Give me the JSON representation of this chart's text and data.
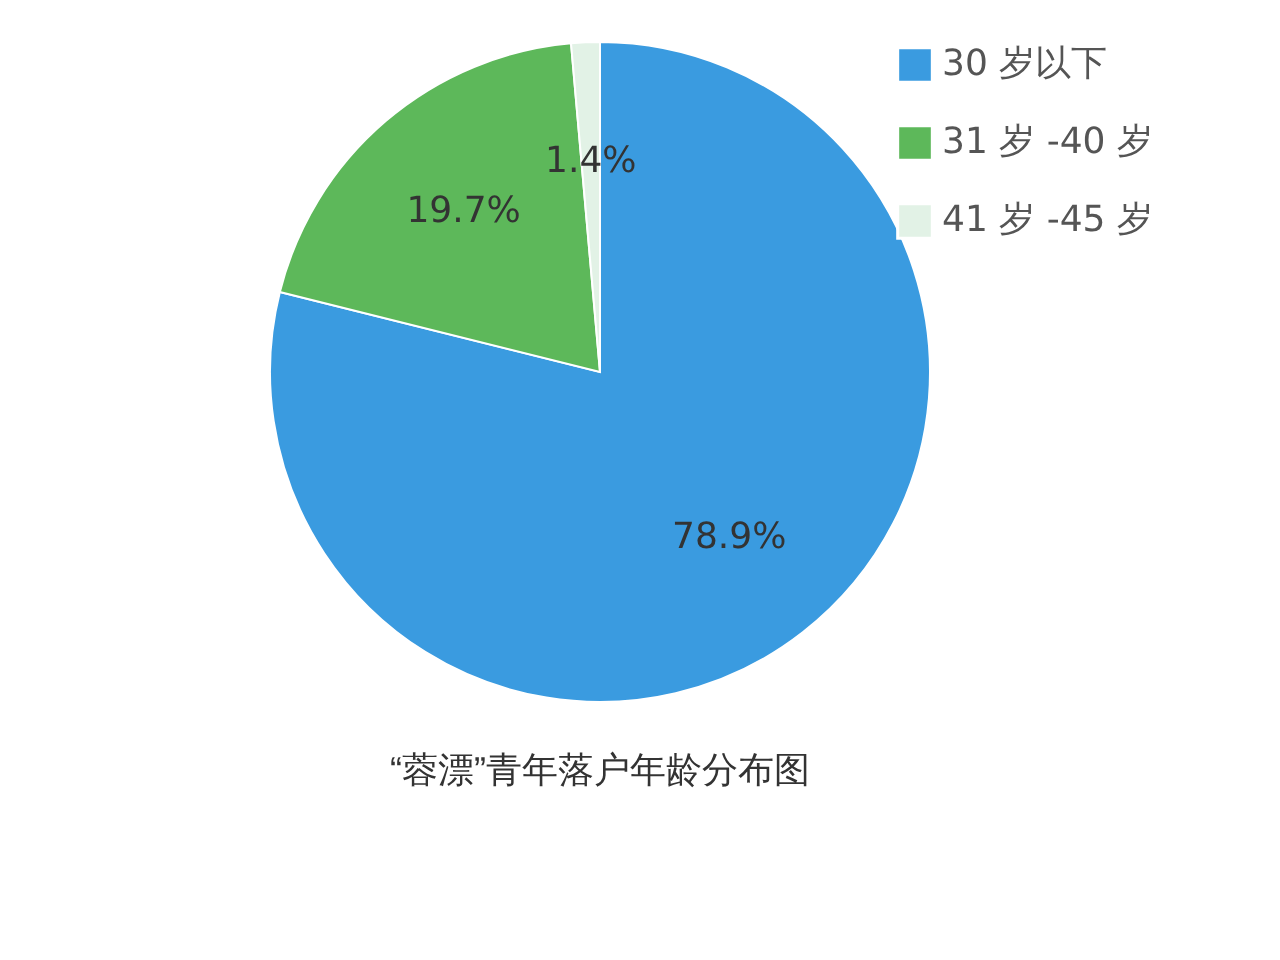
{
  "chart_data": {
    "type": "pie",
    "title": "“蓉漂”青年落户年龄分布图",
    "categories": [
      "30 岁以下",
      "31 岁 -40 岁",
      "41 岁 -45 岁"
    ],
    "values": [
      78.9,
      19.7,
      1.4
    ],
    "colors": [
      "#3a9be0",
      "#5db85a",
      "#e2f2e6"
    ],
    "value_labels": [
      "78.9%",
      "19.7%",
      "1.4%"
    ],
    "legend": "top right"
  }
}
